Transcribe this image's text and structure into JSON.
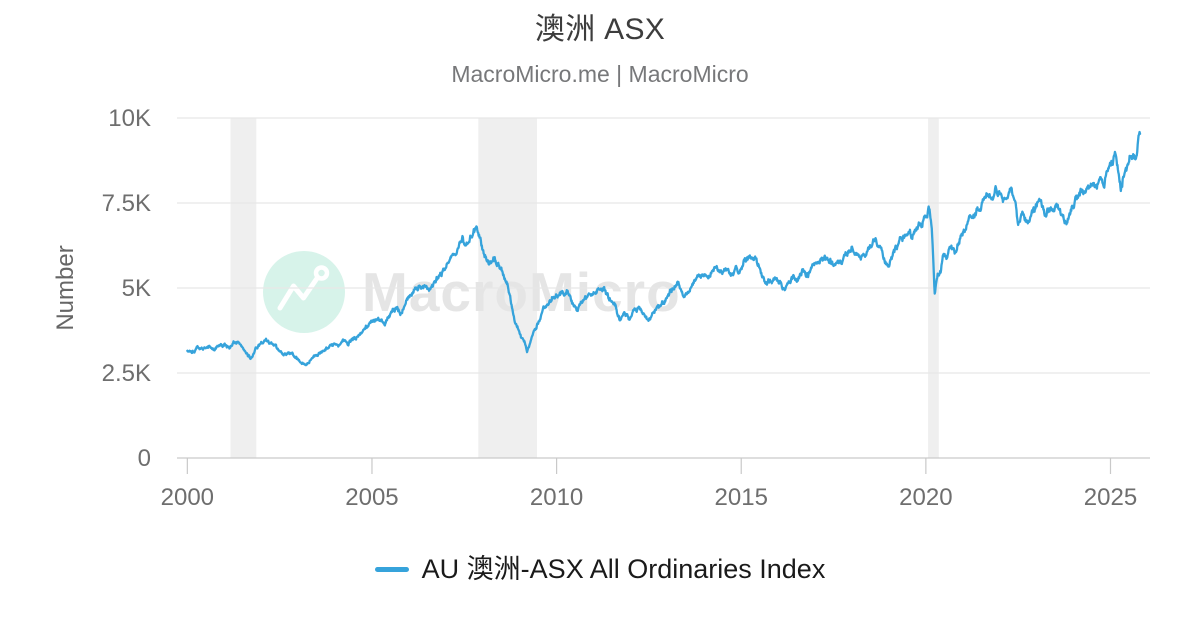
{
  "header": {
    "title": "澳洲 ASX",
    "subtitle": "MacroMicro.me | MacroMicro"
  },
  "watermark": {
    "text": "MacroMicro",
    "logo": "macromicro-line-chart-logo",
    "circle_color": "#d7f3ea",
    "text_color": "#e5e5e5"
  },
  "legend": {
    "items": [
      {
        "label": "AU 澳洲-ASX All Ordinaries Index",
        "color": "#36a3db"
      }
    ]
  },
  "colors": {
    "series_blue": "#36a3db",
    "gridline": "#e8e8e8",
    "axis_line": "#c9c9c9",
    "tick_label": "#6e6e6e",
    "recession_band": "#efefef"
  },
  "chart_data": {
    "type": "line",
    "title": "澳洲 ASX",
    "subtitle": "MacroMicro.me | MacroMicro",
    "xlabel": "",
    "ylabel": "Number",
    "xlim": [
      1999.72,
      2026.07
    ],
    "ylim": [
      0,
      10000
    ],
    "x_ticks": [
      2000,
      2005,
      2010,
      2015,
      2020,
      2025
    ],
    "y_ticks": [
      {
        "value": 0,
        "label": "0"
      },
      {
        "value": 2500,
        "label": "2.5K"
      },
      {
        "value": 5000,
        "label": "5K"
      },
      {
        "value": 7500,
        "label": "7.5K"
      },
      {
        "value": 10000,
        "label": "10K"
      }
    ],
    "grid": "horizontal",
    "legend_position": "bottom",
    "recession_bands": [
      [
        2001.17,
        2001.87
      ],
      [
        2007.88,
        2009.47
      ],
      [
        2020.06,
        2020.35
      ]
    ],
    "series": [
      {
        "name": "AU 澳洲-ASX All Ordinaries Index",
        "color": "#36a3db",
        "points": [
          [
            2000.0,
            3150
          ],
          [
            2000.12,
            3060
          ],
          [
            2000.25,
            3220
          ],
          [
            2000.4,
            3180
          ],
          [
            2000.55,
            3290
          ],
          [
            2000.7,
            3190
          ],
          [
            2000.85,
            3280
          ],
          [
            2001.0,
            3340
          ],
          [
            2001.15,
            3300
          ],
          [
            2001.3,
            3400
          ],
          [
            2001.45,
            3330
          ],
          [
            2001.58,
            3150
          ],
          [
            2001.72,
            2900
          ],
          [
            2001.85,
            3230
          ],
          [
            2002.0,
            3370
          ],
          [
            2002.12,
            3430
          ],
          [
            2002.25,
            3370
          ],
          [
            2002.4,
            3260
          ],
          [
            2002.55,
            3120
          ],
          [
            2002.7,
            3010
          ],
          [
            2002.82,
            3090
          ],
          [
            2002.95,
            2980
          ],
          [
            2003.1,
            2760
          ],
          [
            2003.2,
            2720
          ],
          [
            2003.35,
            2880
          ],
          [
            2003.5,
            3050
          ],
          [
            2003.65,
            3150
          ],
          [
            2003.8,
            3250
          ],
          [
            2003.95,
            3320
          ],
          [
            2004.1,
            3380
          ],
          [
            2004.25,
            3430
          ],
          [
            2004.35,
            3380
          ],
          [
            2004.5,
            3550
          ],
          [
            2004.65,
            3650
          ],
          [
            2004.8,
            3810
          ],
          [
            2004.95,
            3990
          ],
          [
            2005.1,
            4110
          ],
          [
            2005.25,
            4050
          ],
          [
            2005.35,
            3950
          ],
          [
            2005.5,
            4230
          ],
          [
            2005.65,
            4400
          ],
          [
            2005.78,
            4290
          ],
          [
            2005.95,
            4610
          ],
          [
            2006.1,
            4880
          ],
          [
            2006.25,
            5000
          ],
          [
            2006.4,
            5100
          ],
          [
            2006.52,
            4940
          ],
          [
            2006.7,
            5150
          ],
          [
            2006.85,
            5350
          ],
          [
            2007.0,
            5600
          ],
          [
            2007.15,
            5850
          ],
          [
            2007.3,
            6050
          ],
          [
            2007.45,
            6350
          ],
          [
            2007.55,
            6150
          ],
          [
            2007.65,
            6450
          ],
          [
            2007.84,
            6880
          ],
          [
            2007.95,
            6500
          ],
          [
            2008.05,
            5900
          ],
          [
            2008.18,
            5650
          ],
          [
            2008.3,
            5950
          ],
          [
            2008.42,
            5800
          ],
          [
            2008.55,
            5400
          ],
          [
            2008.68,
            5050
          ],
          [
            2008.78,
            4500
          ],
          [
            2008.88,
            4000
          ],
          [
            2009.0,
            3700
          ],
          [
            2009.08,
            3500
          ],
          [
            2009.2,
            3150
          ],
          [
            2009.35,
            3600
          ],
          [
            2009.5,
            3950
          ],
          [
            2009.62,
            4300
          ],
          [
            2009.75,
            4550
          ],
          [
            2009.9,
            4750
          ],
          [
            2010.05,
            4820
          ],
          [
            2010.2,
            4880
          ],
          [
            2010.3,
            5020
          ],
          [
            2010.42,
            4650
          ],
          [
            2010.55,
            4350
          ],
          [
            2010.7,
            4580
          ],
          [
            2010.85,
            4780
          ],
          [
            2011.0,
            4850
          ],
          [
            2011.12,
            4970
          ],
          [
            2011.3,
            4900
          ],
          [
            2011.45,
            4700
          ],
          [
            2011.6,
            4480
          ],
          [
            2011.72,
            4060
          ],
          [
            2011.82,
            4350
          ],
          [
            2011.95,
            4140
          ],
          [
            2012.1,
            4320
          ],
          [
            2012.25,
            4450
          ],
          [
            2012.38,
            4150
          ],
          [
            2012.5,
            4060
          ],
          [
            2012.65,
            4310
          ],
          [
            2012.8,
            4480
          ],
          [
            2012.95,
            4670
          ],
          [
            2013.1,
            4920
          ],
          [
            2013.3,
            5160
          ],
          [
            2013.42,
            4720
          ],
          [
            2013.55,
            4900
          ],
          [
            2013.7,
            5150
          ],
          [
            2013.85,
            5320
          ],
          [
            2014.0,
            5360
          ],
          [
            2014.15,
            5450
          ],
          [
            2014.3,
            5530
          ],
          [
            2014.45,
            5470
          ],
          [
            2014.6,
            5580
          ],
          [
            2014.72,
            5320
          ],
          [
            2014.85,
            5500
          ],
          [
            2014.95,
            5400
          ],
          [
            2015.1,
            5820
          ],
          [
            2015.27,
            5960
          ],
          [
            2015.4,
            5780
          ],
          [
            2015.52,
            5580
          ],
          [
            2015.65,
            5170
          ],
          [
            2015.78,
            5230
          ],
          [
            2015.9,
            5320
          ],
          [
            2016.05,
            5130
          ],
          [
            2016.12,
            4900
          ],
          [
            2016.25,
            5160
          ],
          [
            2016.4,
            5310
          ],
          [
            2016.52,
            5250
          ],
          [
            2016.65,
            5480
          ],
          [
            2016.8,
            5380
          ],
          [
            2016.95,
            5660
          ],
          [
            2017.1,
            5760
          ],
          [
            2017.25,
            5870
          ],
          [
            2017.4,
            5760
          ],
          [
            2017.55,
            5720
          ],
          [
            2017.7,
            5780
          ],
          [
            2017.85,
            5960
          ],
          [
            2018.0,
            6120
          ],
          [
            2018.12,
            6020
          ],
          [
            2018.25,
            5960
          ],
          [
            2018.4,
            6120
          ],
          [
            2018.55,
            6290
          ],
          [
            2018.65,
            6430
          ],
          [
            2018.78,
            6220
          ],
          [
            2018.88,
            5870
          ],
          [
            2018.97,
            5650
          ],
          [
            2019.1,
            5920
          ],
          [
            2019.25,
            6260
          ],
          [
            2019.4,
            6450
          ],
          [
            2019.52,
            6700
          ],
          [
            2019.62,
            6560
          ],
          [
            2019.75,
            6780
          ],
          [
            2019.88,
            6850
          ],
          [
            2020.0,
            7120
          ],
          [
            2020.1,
            7350
          ],
          [
            2020.16,
            6800
          ],
          [
            2020.24,
            4800
          ],
          [
            2020.32,
            5400
          ],
          [
            2020.4,
            5480
          ],
          [
            2020.47,
            6000
          ],
          [
            2020.58,
            5920
          ],
          [
            2020.68,
            6120
          ],
          [
            2020.78,
            6030
          ],
          [
            2020.88,
            6340
          ],
          [
            2020.98,
            6620
          ],
          [
            2021.1,
            6820
          ],
          [
            2021.22,
            6950
          ],
          [
            2021.35,
            7130
          ],
          [
            2021.48,
            7420
          ],
          [
            2021.58,
            7620
          ],
          [
            2021.7,
            7820
          ],
          [
            2021.8,
            7650
          ],
          [
            2021.9,
            7880
          ],
          [
            2022.0,
            7760
          ],
          [
            2022.1,
            7500
          ],
          [
            2022.2,
            7650
          ],
          [
            2022.3,
            7880
          ],
          [
            2022.42,
            7450
          ],
          [
            2022.5,
            6750
          ],
          [
            2022.6,
            7140
          ],
          [
            2022.7,
            6920
          ],
          [
            2022.8,
            6880
          ],
          [
            2022.92,
            7240
          ],
          [
            2023.05,
            7480
          ],
          [
            2023.12,
            7550
          ],
          [
            2023.22,
            7120
          ],
          [
            2023.35,
            7340
          ],
          [
            2023.5,
            7420
          ],
          [
            2023.62,
            7280
          ],
          [
            2023.72,
            7120
          ],
          [
            2023.82,
            6980
          ],
          [
            2023.95,
            7350
          ],
          [
            2024.05,
            7700
          ],
          [
            2024.18,
            7850
          ],
          [
            2024.3,
            7800
          ],
          [
            2024.42,
            7960
          ],
          [
            2024.55,
            8050
          ],
          [
            2024.62,
            7880
          ],
          [
            2024.72,
            8280
          ],
          [
            2024.82,
            8180
          ],
          [
            2024.95,
            8450
          ],
          [
            2025.05,
            8620
          ],
          [
            2025.12,
            8880
          ],
          [
            2025.2,
            8480
          ],
          [
            2025.28,
            7950
          ],
          [
            2025.38,
            8450
          ],
          [
            2025.48,
            8720
          ],
          [
            2025.58,
            8900
          ],
          [
            2025.65,
            9060
          ],
          [
            2025.7,
            8930
          ],
          [
            2025.76,
            9260
          ],
          [
            2025.8,
            9400
          ]
        ]
      }
    ]
  }
}
